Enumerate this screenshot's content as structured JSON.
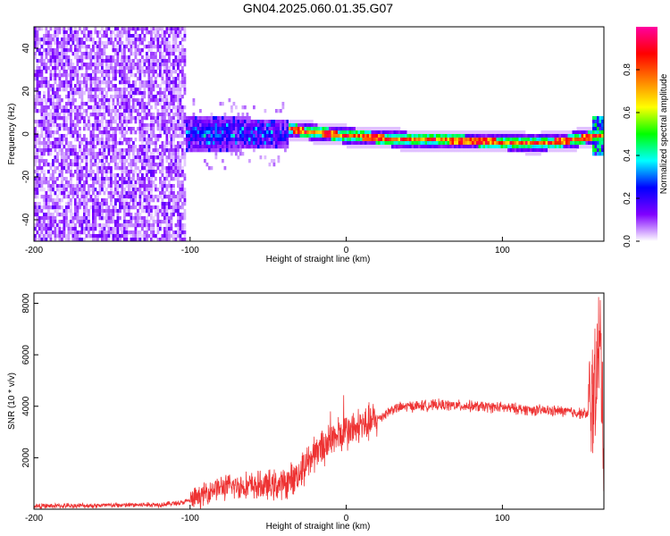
{
  "title": "GN04.2025.060.01.35.G07",
  "chart_data": [
    {
      "type": "heatmap",
      "xlabel": "Height of straight line (km)",
      "ylabel": "Frequency (Hz)",
      "xlim": [
        -200,
        165
      ],
      "ylim": [
        -50,
        50
      ],
      "xticks": [
        -200,
        -100,
        0,
        100
      ],
      "yticks": [
        -40,
        -20,
        0,
        20,
        40
      ],
      "colorbar": {
        "label": "Normalized spectral amplitude",
        "range": [
          0,
          1
        ],
        "ticks": [
          "0.0",
          "0.2",
          "0.4",
          "0.6",
          "0.8"
        ],
        "colors": [
          "#ffffff",
          "#8000ff",
          "#0000ff",
          "#00ffff",
          "#00ff00",
          "#ffff00",
          "#ff8000",
          "#ff0000",
          "#ff00a0"
        ]
      },
      "regions": [
        {
          "x_range": [
            -200,
            -103
          ],
          "freq_range": [
            -50,
            50
          ],
          "amplitude": 0.05,
          "description_key": "noise"
        },
        {
          "x_range": [
            -103,
            -37
          ],
          "freq_range": [
            -10,
            12
          ],
          "amplitude": 0.3
        },
        {
          "x_range": [
            -37,
            160
          ],
          "freq_range": [
            -4,
            4
          ],
          "amplitude": 0.9
        }
      ],
      "ridge_x": [
        -37,
        -20,
        0,
        20,
        40,
        60,
        80,
        100,
        120,
        140,
        160
      ],
      "ridge_freq": [
        3,
        1.5,
        0,
        -1,
        -2,
        -2,
        -2.5,
        -3,
        -3.5,
        -2.5,
        0
      ]
    },
    {
      "type": "line",
      "xlabel": "Height of straight line (km)",
      "ylabel": "SNR (10 * v/v)",
      "xlim": [
        -200,
        165
      ],
      "ylim": [
        0,
        8400
      ],
      "xticks": [
        -200,
        -100,
        0,
        100
      ],
      "yticks": [
        2000,
        4000,
        6000,
        8000
      ],
      "color": "#ee3333",
      "x": [
        -200,
        -150,
        -120,
        -105,
        -95,
        -85,
        -70,
        -55,
        -40,
        -30,
        -20,
        -10,
        0,
        10,
        20,
        30,
        40,
        60,
        80,
        100,
        120,
        140,
        155,
        160,
        163,
        165
      ],
      "y": [
        120,
        150,
        180,
        250,
        450,
        800,
        900,
        900,
        950,
        1400,
        2200,
        2700,
        3000,
        3200,
        3500,
        3900,
        4000,
        4050,
        4000,
        3950,
        3850,
        3800,
        3700,
        5000,
        6500,
        2000
      ]
    }
  ]
}
